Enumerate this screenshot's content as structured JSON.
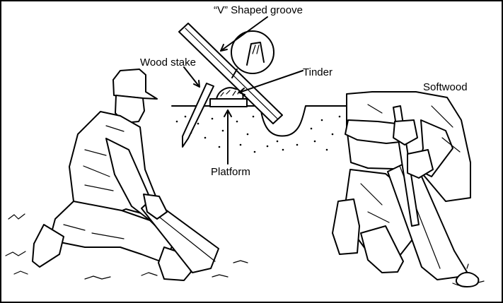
{
  "figure": {
    "labels": {
      "v_groove": "“V” Shaped groove",
      "wood_stake": "Wood stake",
      "tinder": "Tinder",
      "platform": "Platform",
      "softwood": "Softwood"
    }
  }
}
